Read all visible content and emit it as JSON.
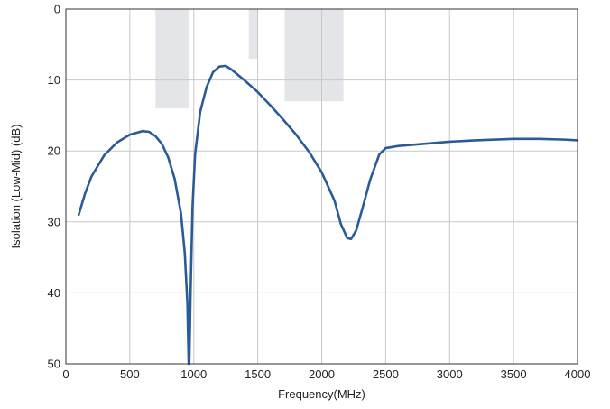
{
  "chart_data": {
    "type": "line",
    "xlabel": "Frequency(MHz)",
    "ylabel": "Isolation (Low-Mid) (dB)",
    "xlim": [
      0,
      4000
    ],
    "ylim": [
      0,
      50
    ],
    "y_inverted": true,
    "grid": true,
    "legend": "none",
    "xticks": [
      0,
      500,
      1000,
      1500,
      2000,
      2500,
      3000,
      3500,
      4000
    ],
    "yticks": [
      0,
      10,
      20,
      30,
      40,
      50
    ],
    "xtick_labels": [
      "0",
      "500",
      "1000",
      "1500",
      "2000",
      "2500",
      "3000",
      "3500",
      "4000"
    ],
    "ytick_labels": [
      "0",
      "10",
      "20",
      "30",
      "40",
      "50"
    ],
    "shaded_bands": [
      {
        "x_start": 700,
        "x_end": 960,
        "y_start": 0,
        "y_end": 14
      },
      {
        "x_start": 1430,
        "x_end": 1500,
        "y_start": 0,
        "y_end": 7
      },
      {
        "x_start": 1710,
        "x_end": 2170,
        "y_start": 0,
        "y_end": 13
      }
    ],
    "series": [
      {
        "color": "#2a5b96",
        "points": [
          [
            100,
            29.0
          ],
          [
            150,
            26.0
          ],
          [
            200,
            23.6
          ],
          [
            300,
            20.6
          ],
          [
            400,
            18.8
          ],
          [
            500,
            17.7
          ],
          [
            600,
            17.2
          ],
          [
            650,
            17.3
          ],
          [
            700,
            17.9
          ],
          [
            750,
            19.0
          ],
          [
            800,
            20.9
          ],
          [
            850,
            23.9
          ],
          [
            900,
            28.8
          ],
          [
            930,
            34.5
          ],
          [
            950,
            41.5
          ],
          [
            960,
            50.0
          ],
          [
            965,
            50.0
          ],
          [
            975,
            40.0
          ],
          [
            990,
            28.0
          ],
          [
            1010,
            20.5
          ],
          [
            1050,
            14.5
          ],
          [
            1100,
            11.0
          ],
          [
            1150,
            8.9
          ],
          [
            1200,
            8.1
          ],
          [
            1250,
            8.0
          ],
          [
            1300,
            8.6
          ],
          [
            1400,
            10.1
          ],
          [
            1500,
            11.7
          ],
          [
            1600,
            13.6
          ],
          [
            1700,
            15.6
          ],
          [
            1800,
            17.7
          ],
          [
            1900,
            20.1
          ],
          [
            2000,
            23.0
          ],
          [
            2100,
            27.0
          ],
          [
            2150,
            30.3
          ],
          [
            2200,
            32.3
          ],
          [
            2230,
            32.4
          ],
          [
            2270,
            31.2
          ],
          [
            2320,
            28.0
          ],
          [
            2380,
            24.0
          ],
          [
            2450,
            20.5
          ],
          [
            2500,
            19.6
          ],
          [
            2600,
            19.3
          ],
          [
            2800,
            19.0
          ],
          [
            3000,
            18.7
          ],
          [
            3200,
            18.5
          ],
          [
            3500,
            18.3
          ],
          [
            3700,
            18.3
          ],
          [
            3900,
            18.4
          ],
          [
            4000,
            18.5
          ]
        ]
      }
    ],
    "colors": {
      "line": "#2a5b96",
      "band": "#e4e5e8",
      "grid": "#c8c8c8",
      "frame": "#333333"
    }
  }
}
